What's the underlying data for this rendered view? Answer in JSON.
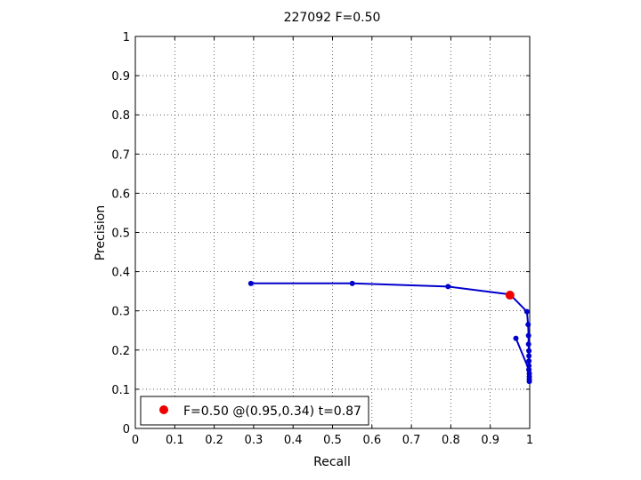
{
  "chart_data": {
    "type": "line",
    "title": "227092 F=0.50",
    "xlabel": "Recall",
    "ylabel": "Precision",
    "xlim": [
      0,
      1
    ],
    "ylim": [
      0,
      1
    ],
    "xticks": [
      "0",
      "0.1",
      "0.2",
      "0.3",
      "0.4",
      "0.5",
      "0.6",
      "0.7",
      "0.8",
      "0.9",
      "1"
    ],
    "yticks": [
      "0",
      "0.1",
      "0.2",
      "0.3",
      "0.4",
      "0.5",
      "0.6",
      "0.7",
      "0.8",
      "0.9",
      "1"
    ],
    "grid": true,
    "legend_position": "bottom-left",
    "series": [
      {
        "color": "#0000cc",
        "marker": "dot",
        "points": [
          [
            0.293,
            0.37
          ],
          [
            0.55,
            0.37
          ],
          [
            0.793,
            0.362
          ],
          [
            0.95,
            0.342
          ],
          [
            0.993,
            0.298
          ],
          [
            0.996,
            0.265
          ],
          [
            0.997,
            0.237
          ],
          [
            0.997,
            0.215
          ],
          [
            0.998,
            0.198
          ],
          [
            0.998,
            0.185
          ],
          [
            0.998,
            0.172
          ],
          [
            0.998,
            0.16
          ],
          [
            0.998,
            0.15
          ],
          [
            0.999,
            0.14
          ],
          [
            0.999,
            0.132
          ],
          [
            0.999,
            0.125
          ],
          [
            0.999,
            0.12
          ],
          [
            0.998,
            0.15
          ],
          [
            0.965,
            0.23
          ]
        ]
      }
    ],
    "best_point": {
      "recall": 0.95,
      "precision": 0.34,
      "color": "#ee0000"
    },
    "legend": {
      "label": "F=0.50 @(0.95,0.34) t=0.87"
    }
  }
}
